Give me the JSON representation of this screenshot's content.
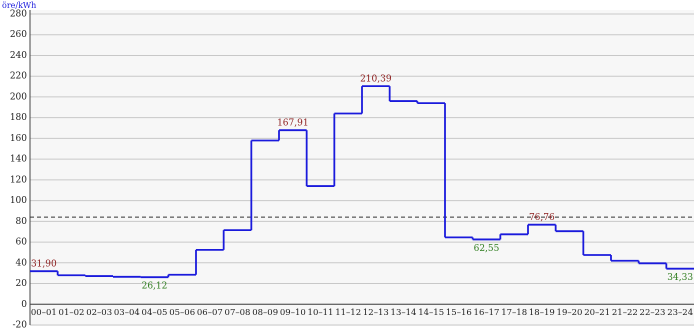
{
  "chart_data": {
    "type": "step",
    "y_unit_label": "öre/kWh",
    "categories": [
      "00–01",
      "01–02",
      "02–03",
      "03–04",
      "04–05",
      "05–06",
      "06–07",
      "07–08",
      "08–09",
      "09–10",
      "10–11",
      "11–12",
      "12–13",
      "13–14",
      "14–15",
      "15–16",
      "16–17",
      "17–18",
      "18–19",
      "19–20",
      "20–21",
      "21–22",
      "22–23",
      "23–24"
    ],
    "values": [
      31.9,
      28,
      27.2,
      26.5,
      26.12,
      28.5,
      52.5,
      71.5,
      158,
      167.91,
      114,
      184,
      210.39,
      196,
      194,
      64.5,
      62.55,
      67.5,
      76.76,
      70.5,
      47.5,
      42,
      39.5,
      34.33
    ],
    "value_labels": [
      "31,90",
      null,
      null,
      null,
      "26,12",
      null,
      null,
      null,
      null,
      "167,91",
      null,
      null,
      "210,39",
      null,
      null,
      null,
      "62,55",
      null,
      "76,76",
      null,
      null,
      null,
      null,
      "34,33"
    ],
    "value_label_colors": [
      "#8b1a1a",
      null,
      null,
      null,
      "#2e7d1e",
      null,
      null,
      null,
      null,
      "#8b1a1a",
      null,
      null,
      "#8b1a1a",
      null,
      null,
      null,
      "#2e7d1e",
      null,
      "#8b1a1a",
      null,
      null,
      null,
      null,
      "#2e7d1e"
    ],
    "color": "#1a1adc",
    "reference_line": 84,
    "ylim": [
      -20,
      280
    ],
    "yticks": [
      -20,
      0,
      20,
      40,
      60,
      80,
      100,
      120,
      140,
      160,
      180,
      200,
      220,
      240,
      260,
      280
    ],
    "grid": true
  }
}
